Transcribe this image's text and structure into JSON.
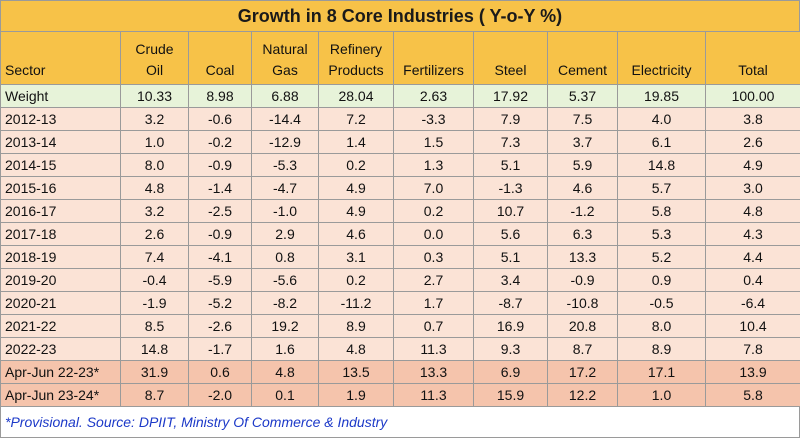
{
  "chart_data": {
    "type": "table",
    "title": "Growth in 8 Core Industries ( Y-o-Y %)",
    "columns": [
      {
        "key": "sector",
        "label_lines": [
          "Sector"
        ]
      },
      {
        "key": "crude_oil",
        "label_lines": [
          "Crude",
          "Oil"
        ]
      },
      {
        "key": "coal",
        "label_lines": [
          "Coal"
        ]
      },
      {
        "key": "natural_gas",
        "label_lines": [
          "Natural",
          "Gas"
        ]
      },
      {
        "key": "refinery_products",
        "label_lines": [
          "Refinery",
          "Products"
        ]
      },
      {
        "key": "fertilizers",
        "label_lines": [
          "Fertilizers"
        ]
      },
      {
        "key": "steel",
        "label_lines": [
          "Steel"
        ]
      },
      {
        "key": "cement",
        "label_lines": [
          "Cement"
        ]
      },
      {
        "key": "electricity",
        "label_lines": [
          "Electricity"
        ]
      },
      {
        "key": "total",
        "label_lines": [
          "Total"
        ]
      }
    ],
    "rows": [
      {
        "label": "Weight",
        "group": "weight",
        "values": [
          "10.33",
          "8.98",
          "6.88",
          "28.04",
          "2.63",
          "17.92",
          "5.37",
          "19.85",
          "100.00"
        ]
      },
      {
        "label": "2012-13",
        "group": "year",
        "values": [
          "3.2",
          "-0.6",
          "-14.4",
          "7.2",
          "-3.3",
          "7.9",
          "7.5",
          "4.0",
          "3.8"
        ]
      },
      {
        "label": "2013-14",
        "group": "year",
        "values": [
          "1.0",
          "-0.2",
          "-12.9",
          "1.4",
          "1.5",
          "7.3",
          "3.7",
          "6.1",
          "2.6"
        ]
      },
      {
        "label": "2014-15",
        "group": "year",
        "values": [
          "8.0",
          "-0.9",
          "-5.3",
          "0.2",
          "1.3",
          "5.1",
          "5.9",
          "14.8",
          "4.9"
        ]
      },
      {
        "label": "2015-16",
        "group": "year",
        "values": [
          "4.8",
          "-1.4",
          "-4.7",
          "4.9",
          "7.0",
          "-1.3",
          "4.6",
          "5.7",
          "3.0"
        ]
      },
      {
        "label": "2016-17",
        "group": "year",
        "values": [
          "3.2",
          "-2.5",
          "-1.0",
          "4.9",
          "0.2",
          "10.7",
          "-1.2",
          "5.8",
          "4.8"
        ]
      },
      {
        "label": "2017-18",
        "group": "year",
        "values": [
          "2.6",
          "-0.9",
          "2.9",
          "4.6",
          "0.0",
          "5.6",
          "6.3",
          "5.3",
          "4.3"
        ]
      },
      {
        "label": "2018-19",
        "group": "year",
        "values": [
          "7.4",
          "-4.1",
          "0.8",
          "3.1",
          "0.3",
          "5.1",
          "13.3",
          "5.2",
          "4.4"
        ]
      },
      {
        "label": "2019-20",
        "group": "year",
        "values": [
          "-0.4",
          "-5.9",
          "-5.6",
          "0.2",
          "2.7",
          "3.4",
          "-0.9",
          "0.9",
          "0.4"
        ]
      },
      {
        "label": "2020-21",
        "group": "year",
        "values": [
          "-1.9",
          "-5.2",
          "-8.2",
          "-11.2",
          "1.7",
          "-8.7",
          "-10.8",
          "-0.5",
          "-6.4"
        ]
      },
      {
        "label": "2021-22",
        "group": "year",
        "values": [
          "8.5",
          "-2.6",
          "19.2",
          "8.9",
          "0.7",
          "16.9",
          "20.8",
          "8.0",
          "10.4"
        ]
      },
      {
        "label": "2022-23",
        "group": "year",
        "values": [
          "14.8",
          "-1.7",
          "1.6",
          "4.8",
          "11.3",
          "9.3",
          "8.7",
          "8.9",
          "7.8"
        ]
      },
      {
        "label": "Apr-Jun 22-23*",
        "group": "quarter",
        "values": [
          "31.9",
          "0.6",
          "4.8",
          "13.5",
          "13.3",
          "6.9",
          "17.2",
          "17.1",
          "13.9"
        ]
      },
      {
        "label": "Apr-Jun 23-24*",
        "group": "quarter",
        "values": [
          "8.7",
          "-2.0",
          "0.1",
          "1.9",
          "11.3",
          "15.9",
          "12.2",
          "1.0",
          "5.8"
        ]
      }
    ],
    "footnote": "*Provisional. Source: DPIIT, Ministry Of Commerce & Industry"
  },
  "colors": {
    "header_bg": "#f7c248",
    "weight_row_bg": "#e7f3d9",
    "year_row_bg": "#fbe3d6",
    "quarter_row_bg": "#f5c4ac",
    "footnote_text": "#1c39c8",
    "border": "#9a9a9a"
  }
}
